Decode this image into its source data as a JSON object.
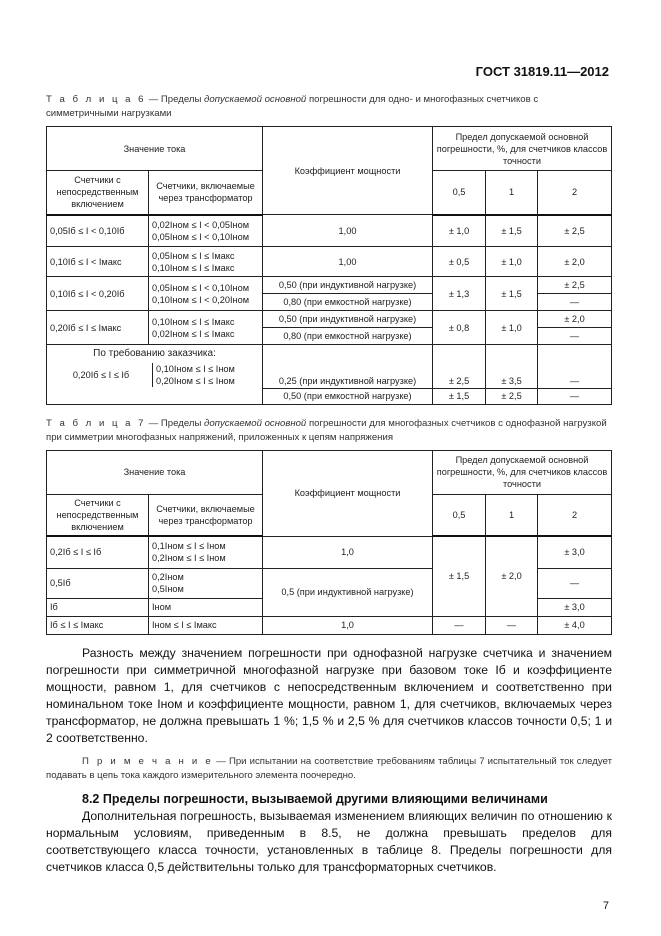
{
  "header": "ГОСТ 31819.11—2012",
  "table6": {
    "caption_label": "Т а б л и ц а  6",
    "caption_pre": " — Пределы ",
    "caption_italic": "допускаемой основной",
    "caption_post": " погрешности для одно- и многофазных счетчиков с симметричными нагрузками",
    "h_current": "Значение тока",
    "h_direct": "Счетчики с непосредственным включением",
    "h_transformer": "Счетчики, включаемые через трансформатор",
    "h_pf": "Коэффициент мощности",
    "h_limit": "Предел допускаемой основной погрешности, %, для счетчиков классов точности",
    "h_c1": "0,5",
    "h_c2": "1",
    "h_c3": "2",
    "rows": [
      {
        "direct": "0,05Iб ≤ I < 0,10Iб",
        "tr1": "0,02Iном ≤ I < 0,05Iном",
        "tr2": "0,05Iном ≤ I < 0,10Iном",
        "pf": "1,00",
        "c1": "± 1,0",
        "c2": "± 1,5",
        "c3": "± 2,5"
      },
      {
        "direct": "0,10Iб ≤ I < Iмакс",
        "tr1": "0,05Iном ≤ I ≤ Iмакс",
        "tr2": "0,10Iном ≤ I ≤ Iмакс",
        "pf": "1,00",
        "c1": "± 0,5",
        "c2": "± 1,0",
        "c3": "± 2,0"
      },
      {
        "direct": "0,10Iб ≤ I < 0,20Iб",
        "tr1": "0,05Iном ≤ I < 0,10Iном",
        "tr2": "0,10Iном ≤ I < 0,20Iном",
        "pf": "0,50 (при индуктивной нагрузке)",
        "pf2": "0,80 (при емкостной нагрузке)",
        "c1": "± 1,3",
        "c2": "± 1,5",
        "c3": "± 2,5",
        "c3b": "—"
      },
      {
        "direct": "0,20Iб ≤ I ≤ Iмакс",
        "tr1": "0,10Iном ≤ I ≤ Iмакс",
        "tr2": "0,02Iном ≤ I ≤ Iмакс",
        "pf": "0,50 (при индуктивной нагрузке)",
        "pf2": "0,80 (при емкостной нагрузке)",
        "c1": "± 0,8",
        "c2": "± 1,0",
        "c3": "± 2,0",
        "c3b": "—"
      },
      {
        "customer": "По требованию заказчика:",
        "direct": "0,20Iб ≤ I ≤ Iб",
        "tr1": "0,10Iном ≤ I ≤ Iном",
        "tr2": "0,20Iном ≤ I ≤ Iном",
        "pf": "0,25 (при индуктивной нагрузке)",
        "pf2": "0,50 (при емкостной нагрузке)",
        "c1": "± 2,5",
        "c2": "± 3,5",
        "c3": "—",
        "c1b": "± 1,5",
        "c2b": "± 2,5",
        "c3b": "—"
      }
    ]
  },
  "table7": {
    "caption_label": "Т а б л и ц а  7",
    "caption_pre": " — Пределы ",
    "caption_italic": "допускаемой основной",
    "caption_post": " погрешности для многофазных счетчиков с однофазной нагрузкой при симметрии многофазных напряжений, приложенных к цепям напряжения",
    "h_current": "Значение тока",
    "h_direct": "Счетчики с непосредственным включением",
    "h_transformer": "Счетчики, включаемые через трансформатор",
    "h_pf": "Коэффициент мощности",
    "h_limit": "Предел допускаемой основной погрешности, %, для счетчиков классов точности",
    "h_c1": "0,5",
    "h_c2": "1",
    "h_c3": "2",
    "rows": [
      {
        "direct": "0,2Iб ≤ I ≤ Iб",
        "tr1": "0,1Iном ≤ I ≤ Iном",
        "tr2": "0,2Iном ≤ I ≤ Iном",
        "pf": "1,0",
        "c3": "± 3,0"
      },
      {
        "direct": "0,5Iб",
        "tr1": "0,2Iном",
        "tr2": "0,5Iном",
        "pf": "0,5 (при индуктивной нагрузке)",
        "c3": "—"
      },
      {
        "direct": "Iб",
        "tr1": "Iном",
        "c3": "± 3,0"
      },
      {
        "direct": "Iб ≤ I ≤ Iмакс",
        "tr1": "Iном ≤ I ≤ Iмакс",
        "pf": "1,0",
        "c1": "—",
        "c2": "—",
        "c3": "± 4,0"
      }
    ],
    "merged_c1": "± 1,5",
    "merged_c2": "± 2,0"
  },
  "paragraph1": "Разность между значением погрешности при однофазной нагрузке счетчика и значением погрешности при симметричной многофазной нагрузке при базовом токе Iб и коэффициенте мощности, равном 1, для счетчиков с непосредственным включением и соответственно при номинальном токе Iном и коэффициенте мощности, равном 1, для счетчиков, включаемых через трансформатор, не должна превышать 1 %; 1,5 % и 2,5 % для счетчиков классов точности 0,5; 1 и 2 соответственно.",
  "note_label": "П р и м е ч а н и е",
  "note_text": " — При испытании на соответствие требованиям таблицы 7 испытательный ток следует подавать в цепь тока каждого измерительного элемента поочередно.",
  "section_heading": "8.2  Пределы погрешности, вызываемой другими влияющими величинами",
  "paragraph2": "Дополнительная погрешность, вызываемая изменением влияющих величин по отношению к нормальным условиям, приведенным в 8.5, не должна превышать пределов для соответствующего класса точности, установленных в таблице 8. Пределы погрешности для счетчиков класса 0,5 действительны только для трансформаторных счетчиков.",
  "page_number": "7"
}
